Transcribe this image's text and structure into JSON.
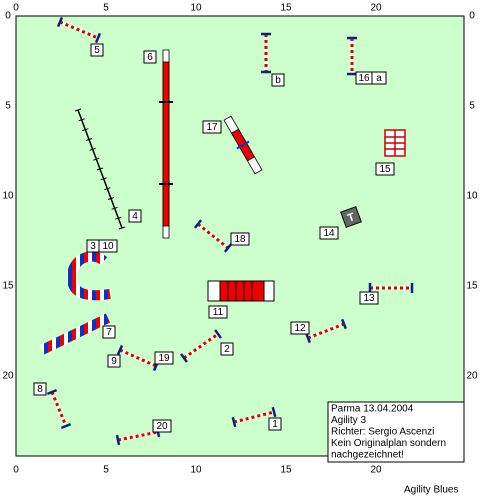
{
  "axis": {
    "x_ticks": [
      0,
      5,
      10,
      15,
      20
    ],
    "y_ticks": [
      0,
      5,
      10,
      15,
      20
    ]
  },
  "labels": [
    "5",
    "6",
    "b",
    "16",
    "a",
    "17",
    "15",
    "14",
    "4",
    "18",
    "3",
    "10",
    "13",
    "11",
    "7",
    "12",
    "2",
    "9",
    "19",
    "8",
    "20",
    "1"
  ],
  "info": {
    "lines": [
      "Parma 13.04.2004",
      "Agility 3",
      "Richter: Sergio Ascenzi",
      "Kein Originalplan sondern",
      "nachgezeichnet!"
    ]
  },
  "footer": "Agility Blues"
}
